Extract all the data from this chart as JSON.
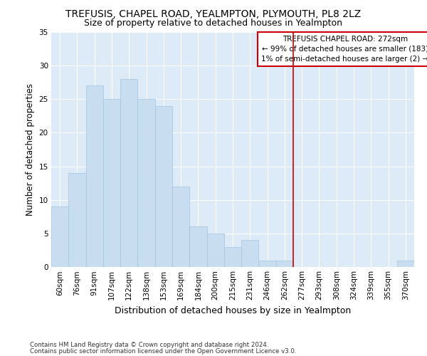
{
  "title": "TREFUSIS, CHAPEL ROAD, YEALMPTON, PLYMOUTH, PL8 2LZ",
  "subtitle": "Size of property relative to detached houses in Yealmpton",
  "xlabel": "Distribution of detached houses by size in Yealmpton",
  "ylabel": "Number of detached properties",
  "categories": [
    "60sqm",
    "76sqm",
    "91sqm",
    "107sqm",
    "122sqm",
    "138sqm",
    "153sqm",
    "169sqm",
    "184sqm",
    "200sqm",
    "215sqm",
    "231sqm",
    "246sqm",
    "262sqm",
    "277sqm",
    "293sqm",
    "308sqm",
    "324sqm",
    "339sqm",
    "355sqm",
    "370sqm"
  ],
  "values": [
    9,
    14,
    27,
    25,
    28,
    25,
    24,
    12,
    6,
    5,
    3,
    4,
    1,
    1,
    0,
    0,
    0,
    0,
    0,
    0,
    1
  ],
  "bar_color": "#c8ddf0",
  "bar_edge_color": "#a0c4e0",
  "highlight_line_index": 14,
  "highlight_color": "#cc0000",
  "annotation_title": "TREFUSIS CHAPEL ROAD: 272sqm",
  "annotation_line1": "← 99% of detached houses are smaller (183)",
  "annotation_line2": "1% of semi-detached houses are larger (2) →",
  "footer1": "Contains HM Land Registry data © Crown copyright and database right 2024.",
  "footer2": "Contains public sector information licensed under the Open Government Licence v3.0.",
  "ylim_min": 0,
  "ylim_max": 35,
  "yticks": [
    0,
    5,
    10,
    15,
    20,
    25,
    30,
    35
  ],
  "fig_bg_color": "#ffffff",
  "plot_bg_color": "#ddeaf7",
  "title_fontsize": 10,
  "subtitle_fontsize": 9,
  "xlabel_fontsize": 9,
  "ylabel_fontsize": 8.5,
  "tick_fontsize": 7.5,
  "annot_fontsize": 7.5,
  "footer_fontsize": 6.2
}
